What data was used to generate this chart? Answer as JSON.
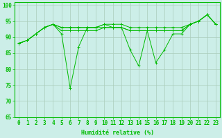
{
  "xlabel": "Humidité relative (%)",
  "background_color": "#cceee8",
  "grid_color": "#aaccbb",
  "line_color": "#00bb00",
  "series": [
    [
      88,
      89,
      91,
      93,
      94,
      91,
      74,
      87,
      93,
      93,
      94,
      93,
      93,
      86,
      81,
      92,
      82,
      86,
      91,
      91,
      94,
      95,
      97,
      94
    ],
    [
      88,
      89,
      91,
      93,
      94,
      93,
      93,
      93,
      93,
      93,
      94,
      94,
      94,
      93,
      93,
      93,
      93,
      93,
      93,
      93,
      94,
      95,
      97,
      94
    ],
    [
      88,
      89,
      91,
      93,
      94,
      92,
      92,
      92,
      92,
      92,
      93,
      93,
      93,
      92,
      92,
      92,
      92,
      92,
      92,
      92,
      94,
      95,
      97,
      94
    ],
    [
      88,
      89,
      91,
      93,
      94,
      93,
      93,
      93,
      93,
      93,
      93,
      93,
      93,
      92,
      92,
      92,
      92,
      92,
      92,
      92,
      94,
      95,
      97,
      94
    ]
  ],
  "xlim": [
    -0.5,
    23.5
  ],
  "ylim": [
    65,
    101
  ],
  "yticks": [
    65,
    70,
    75,
    80,
    85,
    90,
    95,
    100
  ],
  "xticks": [
    0,
    1,
    2,
    3,
    4,
    5,
    6,
    7,
    8,
    9,
    10,
    11,
    12,
    13,
    14,
    15,
    16,
    17,
    18,
    19,
    20,
    21,
    22,
    23
  ],
  "xtick_labels": [
    "0",
    "1",
    "2",
    "3",
    "4",
    "5",
    "6",
    "7",
    "8",
    "9",
    "10",
    "11",
    "12",
    "13",
    "14",
    "15",
    "16",
    "17",
    "18",
    "19",
    "20",
    "21",
    "22",
    "23"
  ],
  "axis_fontsize": 6,
  "tick_fontsize": 5.5
}
